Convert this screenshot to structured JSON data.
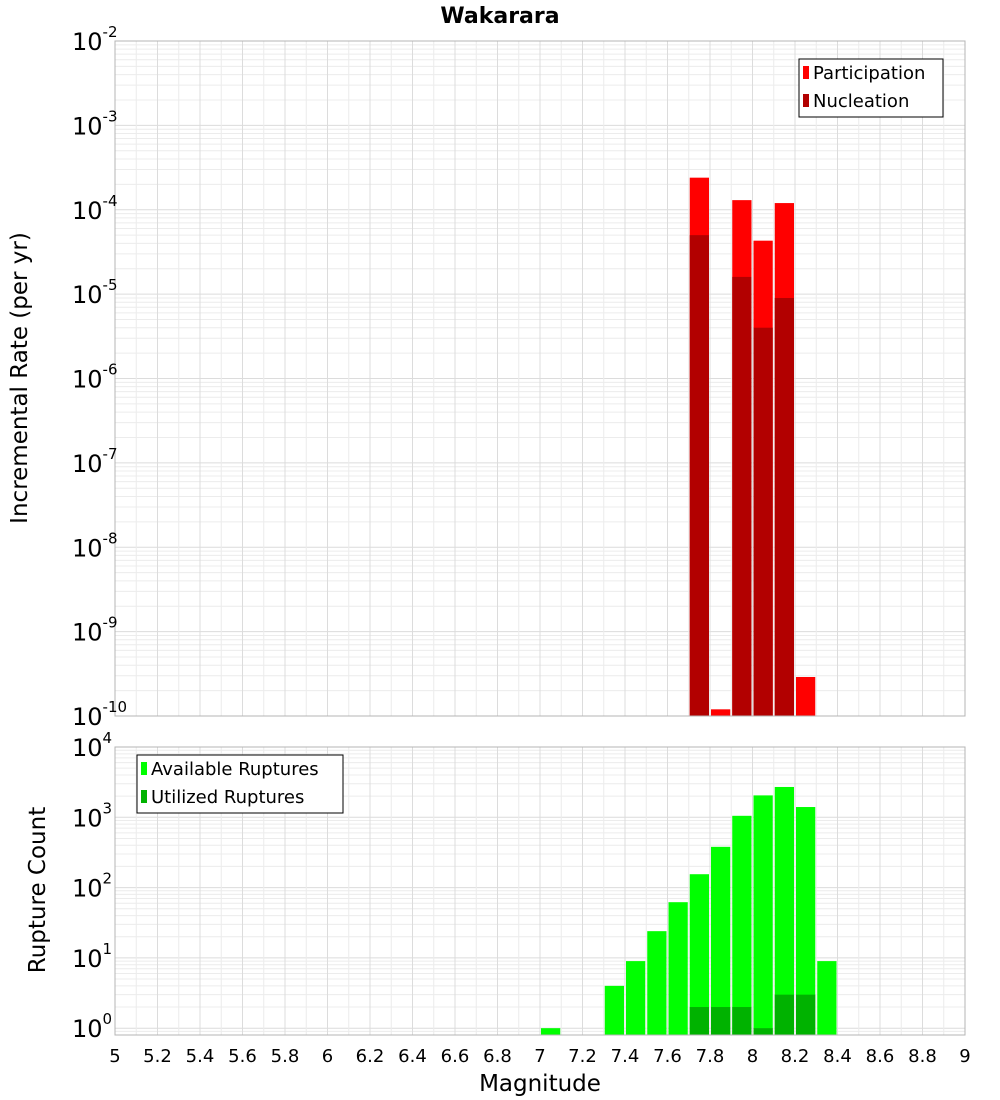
{
  "chart_data": [
    {
      "type": "bar",
      "title": "Wakarara",
      "ylabel": "Incremental Rate (per yr)",
      "y_scale": "log",
      "ylim": [
        1e-10,
        0.01
      ],
      "y_ticks": [
        {
          "base": "10",
          "exp": "-10"
        },
        {
          "base": "10",
          "exp": "-9"
        },
        {
          "base": "10",
          "exp": "-8"
        },
        {
          "base": "10",
          "exp": "-7"
        },
        {
          "base": "10",
          "exp": "-6"
        },
        {
          "base": "10",
          "exp": "-5"
        },
        {
          "base": "10",
          "exp": "-4"
        },
        {
          "base": "10",
          "exp": "-3"
        },
        {
          "base": "10",
          "exp": "-2"
        }
      ],
      "grid": true,
      "legend_position": "top-right",
      "series": [
        {
          "name": "Participation",
          "color": "#ff0000",
          "points": [
            {
              "x": 7.75,
              "y": 0.00024
            },
            {
              "x": 7.85,
              "y": 1.2e-10
            },
            {
              "x": 7.95,
              "y": 0.00013
            },
            {
              "x": 8.05,
              "y": 4.3e-05
            },
            {
              "x": 8.15,
              "y": 0.00012
            },
            {
              "x": 8.25,
              "y": 2.9e-10
            }
          ]
        },
        {
          "name": "Nucleation",
          "color": "#b20000",
          "points": [
            {
              "x": 7.75,
              "y": 5e-05
            },
            {
              "x": 7.95,
              "y": 1.6e-05
            },
            {
              "x": 8.05,
              "y": 4e-06
            },
            {
              "x": 8.15,
              "y": 9e-06
            }
          ]
        }
      ]
    },
    {
      "type": "bar",
      "xlabel": "Magnitude",
      "ylabel": "Rupture Count",
      "y_scale": "log",
      "ylim": [
        0.8,
        10000
      ],
      "y_ticks": [
        {
          "base": "10",
          "exp": "0"
        },
        {
          "base": "10",
          "exp": "1"
        },
        {
          "base": "10",
          "exp": "2"
        },
        {
          "base": "10",
          "exp": "3"
        },
        {
          "base": "10",
          "exp": "4"
        }
      ],
      "xlim": [
        5,
        9
      ],
      "x_ticks": [
        "5",
        "5.2",
        "5.4",
        "5.6",
        "5.8",
        "6",
        "6.2",
        "6.4",
        "6.6",
        "6.8",
        "7",
        "7.2",
        "7.4",
        "7.6",
        "7.8",
        "8",
        "8.2",
        "8.4",
        "8.6",
        "8.8",
        "9"
      ],
      "grid": true,
      "legend_position": "top-left",
      "series": [
        {
          "name": "Available Ruptures",
          "color": "#00ff00",
          "points": [
            {
              "x": 7.05,
              "y": 1
            },
            {
              "x": 7.35,
              "y": 4
            },
            {
              "x": 7.45,
              "y": 9
            },
            {
              "x": 7.55,
              "y": 24
            },
            {
              "x": 7.65,
              "y": 62
            },
            {
              "x": 7.75,
              "y": 155
            },
            {
              "x": 7.85,
              "y": 380
            },
            {
              "x": 7.95,
              "y": 1050
            },
            {
              "x": 8.05,
              "y": 2050
            },
            {
              "x": 8.15,
              "y": 2700
            },
            {
              "x": 8.25,
              "y": 1400
            },
            {
              "x": 8.35,
              "y": 9
            }
          ]
        },
        {
          "name": "Utilized Ruptures",
          "color": "#00b200",
          "points": [
            {
              "x": 7.75,
              "y": 2
            },
            {
              "x": 7.85,
              "y": 2
            },
            {
              "x": 7.95,
              "y": 2
            },
            {
              "x": 8.05,
              "y": 1
            },
            {
              "x": 8.15,
              "y": 3
            },
            {
              "x": 8.25,
              "y": 3
            }
          ]
        }
      ]
    }
  ]
}
